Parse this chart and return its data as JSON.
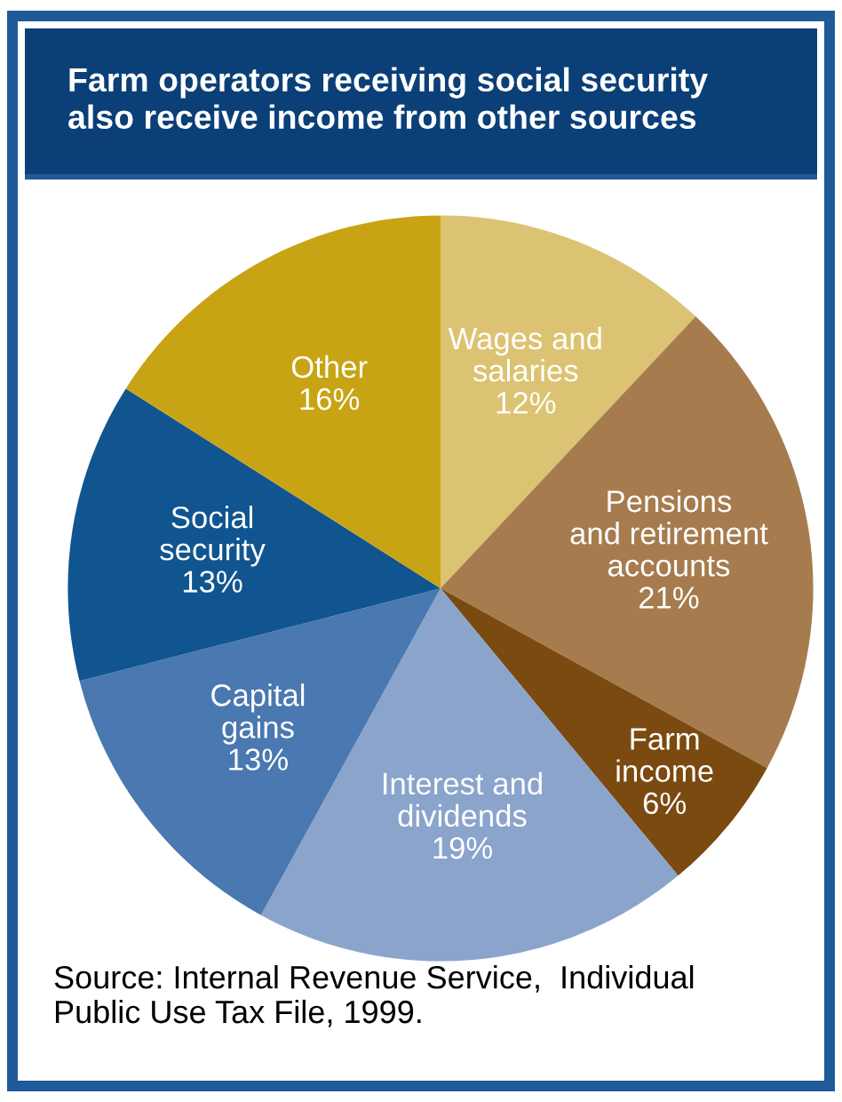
{
  "chart_data": {
    "type": "pie",
    "title": "Farm operators receiving social security\nalso receive income from other sources",
    "categories": [
      "Wages and\nsalaries",
      "Pensions\nand retirement\naccounts",
      "Farm\nincome",
      "Interest and\ndividends",
      "Capital\ngains",
      "Social\nsecurity",
      "Other"
    ],
    "values": [
      12,
      21,
      6,
      19,
      13,
      13,
      16
    ],
    "value_labels": [
      "12%",
      "21%",
      "6%",
      "19%",
      "13%",
      "13%",
      "16%"
    ],
    "colors": [
      "#dcc373",
      "#a67c4e",
      "#7a4a10",
      "#8aa4cc",
      "#4a78b0",
      "#10558f",
      "#c8a414"
    ],
    "legend": false,
    "annotations": [
      "Source: Internal Revenue Service,  Individual\nPublic Use Tax File, 1999."
    ]
  }
}
